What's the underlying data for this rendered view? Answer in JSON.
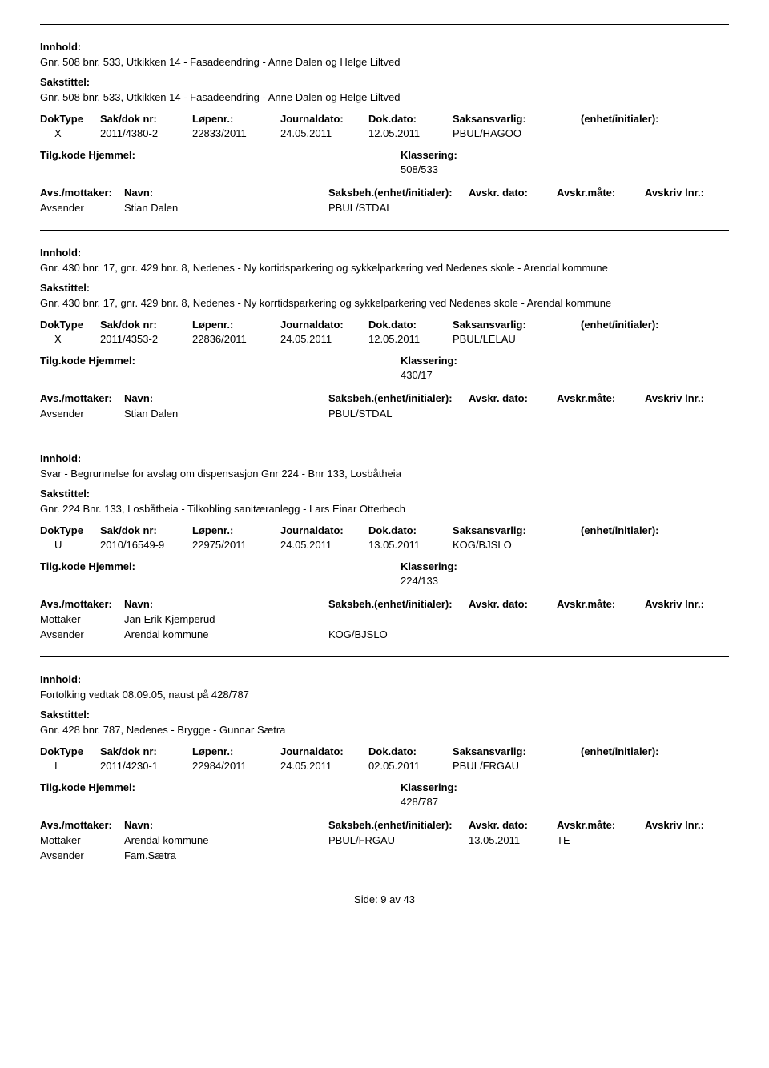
{
  "labels": {
    "innhold": "Innhold:",
    "sakstittel": "Sakstittel:",
    "doktype": "DokType",
    "sakdok": "Sak/dok nr:",
    "lopenr": "Løpenr.:",
    "journaldato": "Journaldato:",
    "dokdato": "Dok.dato:",
    "saksansvarlig": "Saksansvarlig:",
    "enhet_initialer": "(enhet/initialer):",
    "tilgkode": "Tilg.kode",
    "hjemmel": "Hjemmel:",
    "klassering": "Klassering:",
    "avs_mottaker": "Avs./mottaker:",
    "navn": "Navn:",
    "saksbeh": "Saksbeh.(enhet/initialer):",
    "avskr_dato": "Avskr. dato:",
    "avskr_mate": "Avskr.måte:",
    "avskr_lnr": "Avskriv lnr.:",
    "avsender": "Avsender",
    "mottaker": "Mottaker"
  },
  "records": [
    {
      "innhold": "Gnr. 508 bnr. 533, Utkikken 14 - Fasadeendring - Anne Dalen og Helge Liltved",
      "sakstittel": "Gnr. 508 bnr. 533, Utkikken 14 - Fasadeendring - Anne Dalen og Helge Liltved",
      "doktype": "X",
      "sakdok": "2011/4380-2",
      "lopenr": "22833/2011",
      "journaldato": "24.05.2011",
      "dokdato": "12.05.2011",
      "saksansvarlig": "PBUL/HAGOO",
      "klassering": "508/533",
      "parties": [
        {
          "role": "Avsender",
          "navn": "Stian Dalen",
          "saksbeh": "PBUL/STDAL",
          "avskr_dato": "",
          "avskr_mate": ""
        }
      ]
    },
    {
      "innhold": "Gnr. 430 bnr. 17, gnr. 429 bnr. 8, Nedenes - Ny kortidsparkering og sykkelparkering ved Nedenes skole - Arendal kommune",
      "sakstittel": "Gnr. 430 bnr. 17, gnr. 429 bnr. 8, Nedenes - Ny korrtidsparkering og sykkelparkering ved Nedenes skole - Arendal kommune",
      "doktype": "X",
      "sakdok": "2011/4353-2",
      "lopenr": "22836/2011",
      "journaldato": "24.05.2011",
      "dokdato": "12.05.2011",
      "saksansvarlig": "PBUL/LELAU",
      "klassering": "430/17",
      "parties": [
        {
          "role": "Avsender",
          "navn": "Stian Dalen",
          "saksbeh": "PBUL/STDAL",
          "avskr_dato": "",
          "avskr_mate": ""
        }
      ]
    },
    {
      "innhold": "Svar - Begrunnelse for avslag om dispensasjon Gnr 224 - Bnr 133, Losbåtheia",
      "sakstittel": "Gnr. 224 Bnr. 133, Losbåtheia - Tilkobling sanitæranlegg - Lars Einar Otterbech",
      "doktype": "U",
      "sakdok": "2010/16549-9",
      "lopenr": "22975/2011",
      "journaldato": "24.05.2011",
      "dokdato": "13.05.2011",
      "saksansvarlig": "KOG/BJSLO",
      "klassering": "224/133",
      "parties": [
        {
          "role": "Mottaker",
          "navn": "Jan Erik Kjemperud",
          "saksbeh": "",
          "avskr_dato": "",
          "avskr_mate": ""
        },
        {
          "role": "Avsender",
          "navn": "Arendal kommune",
          "saksbeh": "KOG/BJSLO",
          "avskr_dato": "",
          "avskr_mate": ""
        }
      ]
    },
    {
      "innhold": "Fortolking vedtak 08.09.05, naust på 428/787",
      "sakstittel": "Gnr. 428 bnr. 787, Nedenes - Brygge - Gunnar Sætra",
      "doktype": "I",
      "sakdok": "2011/4230-1",
      "lopenr": "22984/2011",
      "journaldato": "24.05.2011",
      "dokdato": "02.05.2011",
      "saksansvarlig": "PBUL/FRGAU",
      "klassering": "428/787",
      "parties": [
        {
          "role": "Mottaker",
          "navn": "Arendal kommune",
          "saksbeh": "PBUL/FRGAU",
          "avskr_dato": "13.05.2011",
          "avskr_mate": "TE"
        },
        {
          "role": "Avsender",
          "navn": "Fam.Sætra",
          "saksbeh": "",
          "avskr_dato": "",
          "avskr_mate": ""
        }
      ]
    }
  ],
  "footer": "Side: 9 av 43"
}
